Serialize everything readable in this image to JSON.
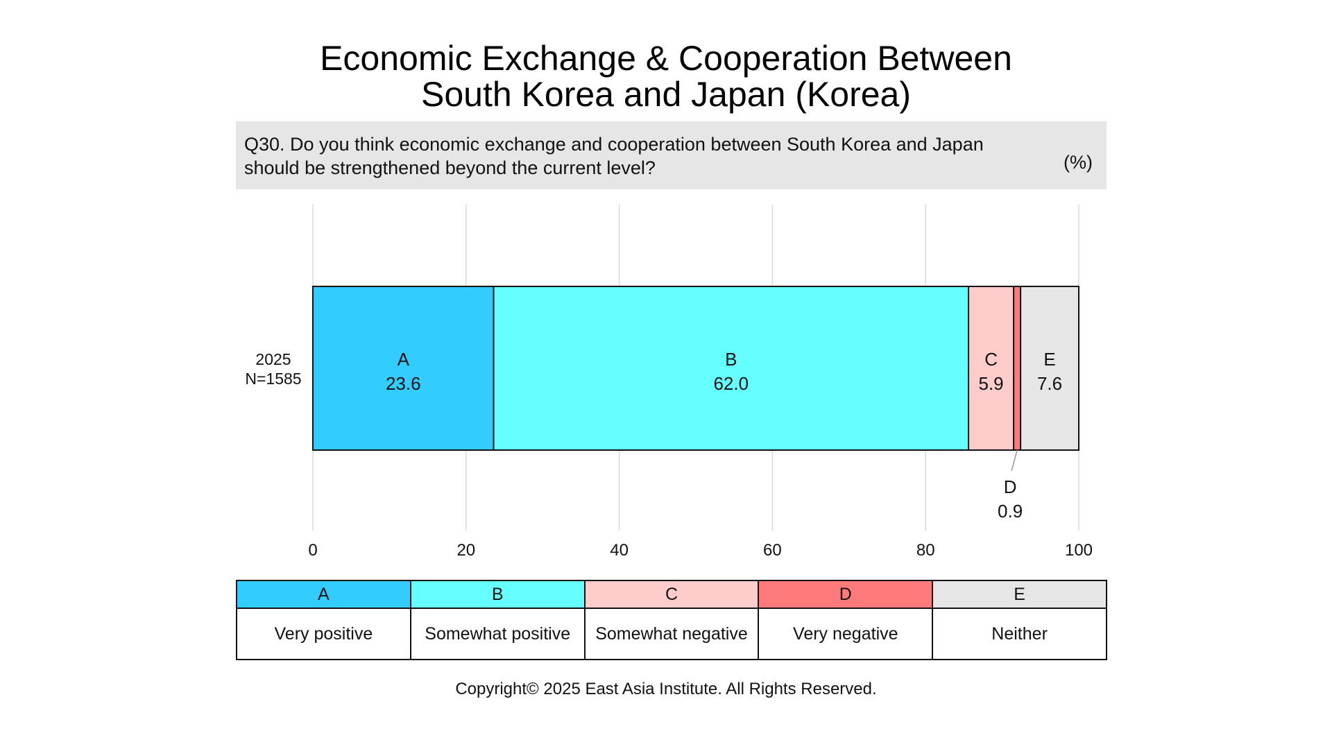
{
  "title_line1": "Economic Exchange & Cooperation Between",
  "title_line2": "South Korea and Japan (Korea)",
  "question_line1": "Q30. Do you think economic exchange and cooperation between South Korea and Japan",
  "question_line2": "should be strengthened beyond the current level?",
  "unit": "(%)",
  "legend": [
    {
      "key": "A",
      "label": "Very positive",
      "color": "#33ccff"
    },
    {
      "key": "B",
      "label": "Somewhat positive",
      "color": "#66ffff"
    },
    {
      "key": "C",
      "label": "Somewhat negative",
      "color": "#ffcccc"
    },
    {
      "key": "D",
      "label": "Very negative",
      "color": "#ff7b7b"
    },
    {
      "key": "E",
      "label": "Neither",
      "color": "#e6e6e6"
    }
  ],
  "copyright": "Copyright© 2025 East Asia Institute. All Rights Reserved.",
  "chart_data": {
    "type": "bar",
    "orientation": "horizontal-stacked",
    "categories": [
      "2025"
    ],
    "category_sublabels": [
      "N=1585"
    ],
    "series": [
      {
        "name": "A",
        "values": [
          23.6
        ]
      },
      {
        "name": "B",
        "values": [
          62.0
        ]
      },
      {
        "name": "C",
        "values": [
          5.9
        ]
      },
      {
        "name": "D",
        "values": [
          0.9
        ]
      },
      {
        "name": "E",
        "values": [
          7.6
        ]
      }
    ],
    "xlim": [
      0,
      100
    ],
    "xticks": [
      0,
      20,
      40,
      60,
      80,
      100
    ],
    "grid": true
  }
}
